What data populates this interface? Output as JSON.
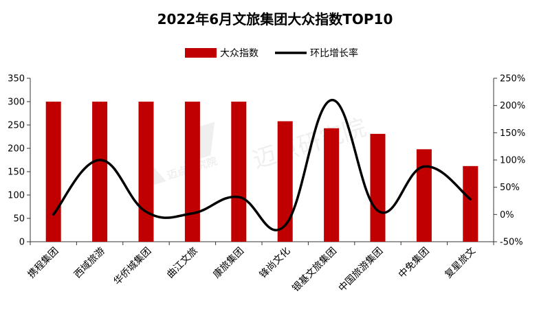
{
  "chart_data": {
    "type": "bar",
    "title": "2022年6月文旅集团大众指数TOP10",
    "categories": [
      "携程集团",
      "西域旅游",
      "华侨城集团",
      "曲江文旅",
      "康旅集团",
      "锋尚文化",
      "银基文旅集团",
      "中国旅游集团",
      "中免集团",
      "复星旅文"
    ],
    "series": [
      {
        "name": "大众指数",
        "type": "bar",
        "axis": "left",
        "color": "#C00000",
        "values": [
          300,
          300,
          300,
          300,
          300,
          258,
          243,
          231,
          198,
          162
        ]
      },
      {
        "name": "环比增长率",
        "type": "line",
        "axis": "right",
        "color": "#000000",
        "unit": "%",
        "values": [
          0,
          100,
          5,
          2,
          32,
          -20,
          210,
          7,
          88,
          28
        ]
      }
    ],
    "y_left": {
      "ylim": [
        0,
        350
      ],
      "ticks": [
        0,
        50,
        100,
        150,
        200,
        250,
        300,
        350
      ],
      "labels": [
        "0",
        "50",
        "100",
        "150",
        "200",
        "250",
        "300",
        "350"
      ]
    },
    "y_right": {
      "ylim": [
        -50,
        250
      ],
      "ticks": [
        -50,
        0,
        50,
        100,
        150,
        200,
        250
      ],
      "labels": [
        "-50%",
        "0%",
        "50%",
        "100%",
        "150%",
        "200%",
        "250%"
      ]
    },
    "legend_position": "top-center",
    "grid": false
  },
  "watermark": "迈点研究院"
}
